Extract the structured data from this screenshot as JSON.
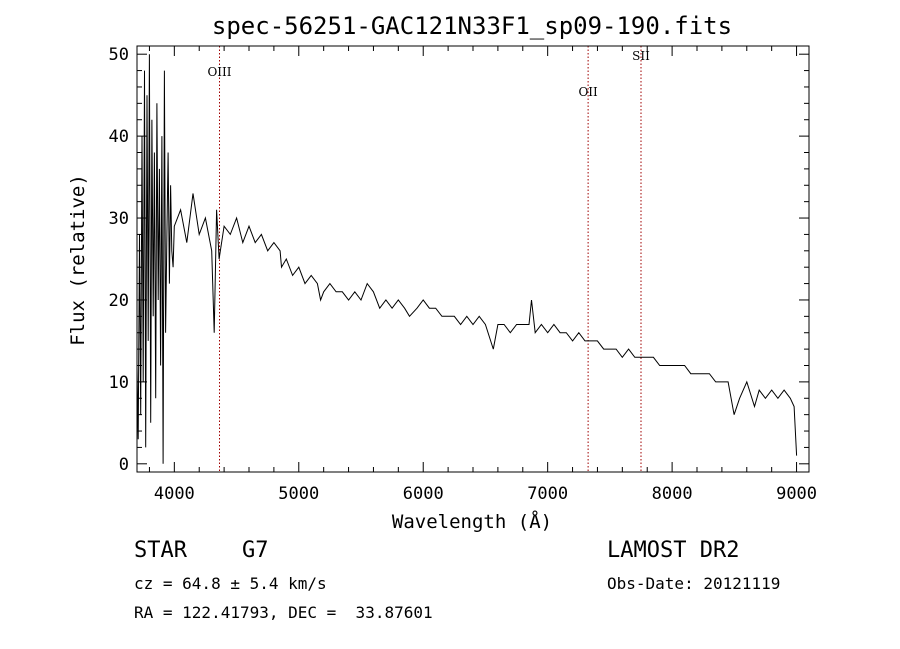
{
  "chart_data": {
    "type": "line",
    "title": "spec-56251-GAC121N33F1_sp09-190.fits",
    "xlabel": "Wavelength (Å)",
    "ylabel": "Flux (relative)",
    "xlim": [
      3700,
      9100
    ],
    "ylim": [
      -1,
      51
    ],
    "xticks": [
      4000,
      5000,
      6000,
      7000,
      8000,
      9000
    ],
    "yticks": [
      0,
      10,
      20,
      30,
      40,
      50
    ],
    "xtick_labels": [
      "4000",
      "5000",
      "6000",
      "7000",
      "8000",
      "9000"
    ],
    "ytick_labels": [
      "0",
      "10",
      "20",
      "30",
      "40",
      "50"
    ],
    "lines": [
      {
        "label": "OIII",
        "x": 4363
      },
      {
        "label": "OII",
        "x": 7325
      },
      {
        "label": "SII",
        "x": 7750
      }
    ],
    "series": [
      {
        "name": "flux",
        "x": [
          3700,
          3710,
          3720,
          3730,
          3740,
          3750,
          3760,
          3770,
          3780,
          3790,
          3800,
          3810,
          3820,
          3830,
          3840,
          3850,
          3860,
          3870,
          3880,
          3890,
          3900,
          3910,
          3920,
          3930,
          3940,
          3950,
          3960,
          3970,
          3980,
          3990,
          4000,
          4050,
          4100,
          4150,
          4200,
          4250,
          4300,
          4320,
          4340,
          4360,
          4400,
          4450,
          4500,
          4550,
          4600,
          4650,
          4700,
          4750,
          4800,
          4850,
          4861,
          4900,
          4950,
          5000,
          5050,
          5100,
          5150,
          5175,
          5200,
          5250,
          5300,
          5350,
          5400,
          5450,
          5500,
          5550,
          5600,
          5650,
          5700,
          5750,
          5800,
          5850,
          5890,
          5950,
          6000,
          6050,
          6100,
          6150,
          6200,
          6250,
          6300,
          6350,
          6400,
          6450,
          6500,
          6563,
          6600,
          6650,
          6700,
          6750,
          6800,
          6850,
          6870,
          6900,
          6950,
          7000,
          7050,
          7100,
          7150,
          7200,
          7250,
          7300,
          7350,
          7400,
          7450,
          7500,
          7550,
          7600,
          7650,
          7700,
          7750,
          7800,
          7850,
          7900,
          7950,
          8000,
          8050,
          8100,
          8150,
          8200,
          8250,
          8300,
          8350,
          8400,
          8450,
          8498,
          8542,
          8600,
          8662,
          8700,
          8750,
          8800,
          8850,
          8900,
          8950,
          8980,
          9000
        ],
        "values": [
          12,
          3,
          28,
          6,
          40,
          10,
          48,
          2,
          45,
          15,
          50,
          5,
          42,
          18,
          38,
          8,
          44,
          20,
          36,
          12,
          40,
          0,
          48,
          16,
          28,
          38,
          22,
          34,
          26,
          24,
          29,
          31,
          27,
          33,
          28,
          30,
          26,
          16,
          31,
          25,
          29,
          28,
          30,
          27,
          29,
          27,
          28,
          26,
          27,
          26,
          24,
          25,
          23,
          24,
          22,
          23,
          22,
          20,
          21,
          22,
          21,
          21,
          20,
          21,
          20,
          22,
          21,
          19,
          20,
          19,
          20,
          19,
          18,
          19,
          20,
          19,
          19,
          18,
          18,
          18,
          17,
          18,
          17,
          18,
          17,
          14,
          17,
          17,
          16,
          17,
          17,
          17,
          20,
          16,
          17,
          16,
          17,
          16,
          16,
          15,
          16,
          15,
          15,
          15,
          14,
          14,
          14,
          13,
          14,
          13,
          13,
          13,
          13,
          12,
          12,
          12,
          12,
          12,
          11,
          11,
          11,
          11,
          10,
          10,
          10,
          6,
          8,
          10,
          7,
          9,
          8,
          9,
          8,
          9,
          8,
          7,
          1
        ]
      }
    ]
  },
  "info": {
    "object_class": "STAR",
    "subclass": "G7",
    "redshift": "cz = 64.8 ± 5.4 km/s",
    "coords": "RA = 122.41793, DEC =  33.87601",
    "survey": "LAMOST DR2",
    "obs_date": "Obs-Date: 20121119"
  }
}
